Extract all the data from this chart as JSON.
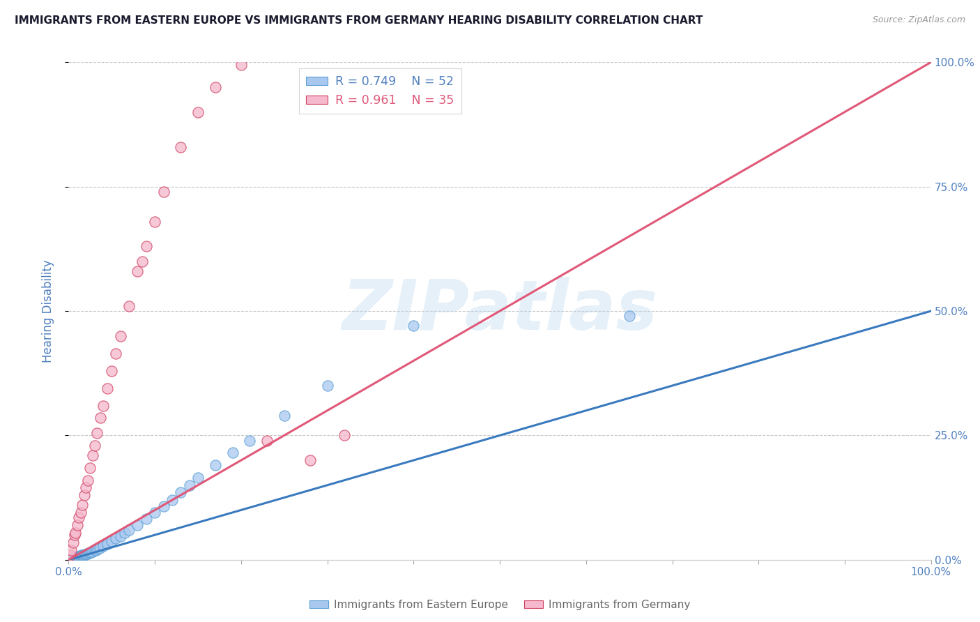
{
  "title": "IMMIGRANTS FROM EASTERN EUROPE VS IMMIGRANTS FROM GERMANY HEARING DISABILITY CORRELATION CHART",
  "source_text": "Source: ZipAtlas.com",
  "ylabel": "Hearing Disability",
  "xlim": [
    0,
    100
  ],
  "ylim": [
    0,
    100
  ],
  "ytick_labels": [
    "0.0%",
    "25.0%",
    "50.0%",
    "75.0%",
    "100.0%"
  ],
  "ytick_values": [
    0,
    25,
    50,
    75,
    100
  ],
  "xtick_positions": [
    0,
    10,
    20,
    30,
    40,
    50,
    60,
    70,
    80,
    90,
    100
  ],
  "series": [
    {
      "label": "Immigrants from Eastern Europe",
      "R": 0.749,
      "N": 52,
      "color": "#a8c8f0",
      "line_color": "#3a7abf",
      "marker_edge": "#5a9fd4",
      "x": [
        0.1,
        0.2,
        0.3,
        0.4,
        0.5,
        0.6,
        0.7,
        0.8,
        0.9,
        1.0,
        1.1,
        1.2,
        1.3,
        1.4,
        1.5,
        1.6,
        1.7,
        1.8,
        1.9,
        2.0,
        2.1,
        2.2,
        2.4,
        2.5,
        2.6,
        2.8,
        3.0,
        3.2,
        3.4,
        3.6,
        4.0,
        4.5,
        5.0,
        5.5,
        6.0,
        6.5,
        7.0,
        8.0,
        9.0,
        10.0,
        11.0,
        12.0,
        13.0,
        14.0,
        15.0,
        17.0,
        19.0,
        21.0,
        25.0,
        30.0,
        40.0,
        65.0
      ],
      "y": [
        0.1,
        0.2,
        0.3,
        0.3,
        0.4,
        0.4,
        0.5,
        0.5,
        0.6,
        0.6,
        0.7,
        0.7,
        0.8,
        0.8,
        0.9,
        0.9,
        1.0,
        1.0,
        1.1,
        1.1,
        1.2,
        1.3,
        1.4,
        1.5,
        1.5,
        1.7,
        1.9,
        2.0,
        2.2,
        2.4,
        2.8,
        3.2,
        3.8,
        4.3,
        4.8,
        5.4,
        6.0,
        7.0,
        8.2,
        9.5,
        10.8,
        12.0,
        13.5,
        15.0,
        16.5,
        19.0,
        21.5,
        24.0,
        29.0,
        35.0,
        47.0,
        49.0
      ],
      "trendline_x": [
        0,
        100
      ],
      "trendline_y": [
        0,
        50
      ]
    },
    {
      "label": "Immigrants from Germany",
      "R": 0.961,
      "N": 35,
      "color": "#f5b8cc",
      "line_color": "#e05878",
      "marker_edge": "#d04060",
      "x": [
        0.2,
        0.3,
        0.5,
        0.7,
        0.8,
        1.0,
        1.2,
        1.4,
        1.6,
        1.8,
        2.0,
        2.2,
        2.5,
        2.8,
        3.0,
        3.3,
        3.7,
        4.0,
        4.5,
        5.0,
        5.5,
        6.0,
        7.0,
        8.0,
        8.5,
        9.0,
        10.0,
        11.0,
        13.0,
        15.0,
        17.0,
        20.0,
        23.0,
        28.0,
        32.0
      ],
      "y": [
        1.0,
        2.0,
        3.5,
        5.0,
        5.5,
        7.0,
        8.5,
        9.5,
        11.0,
        13.0,
        14.5,
        16.0,
        18.5,
        21.0,
        23.0,
        25.5,
        28.5,
        31.0,
        34.5,
        38.0,
        41.5,
        45.0,
        51.0,
        58.0,
        60.0,
        63.0,
        68.0,
        74.0,
        83.0,
        90.0,
        95.0,
        99.5,
        24.0,
        20.0,
        25.0
      ],
      "trendline_x": [
        0,
        100
      ],
      "trendline_y": [
        0,
        100
      ]
    }
  ],
  "legend": {
    "blue_r": "R = 0.749",
    "blue_n": "N = 52",
    "pink_r": "R = 0.961",
    "pink_n": "N = 35"
  },
  "watermark_text": "ZIPatlas",
  "title_color": "#1a1a2e",
  "axis_label_color": "#5080c0",
  "tick_color": "#5080c0",
  "grid_color": "#c8c8c8",
  "background_color": "#ffffff"
}
